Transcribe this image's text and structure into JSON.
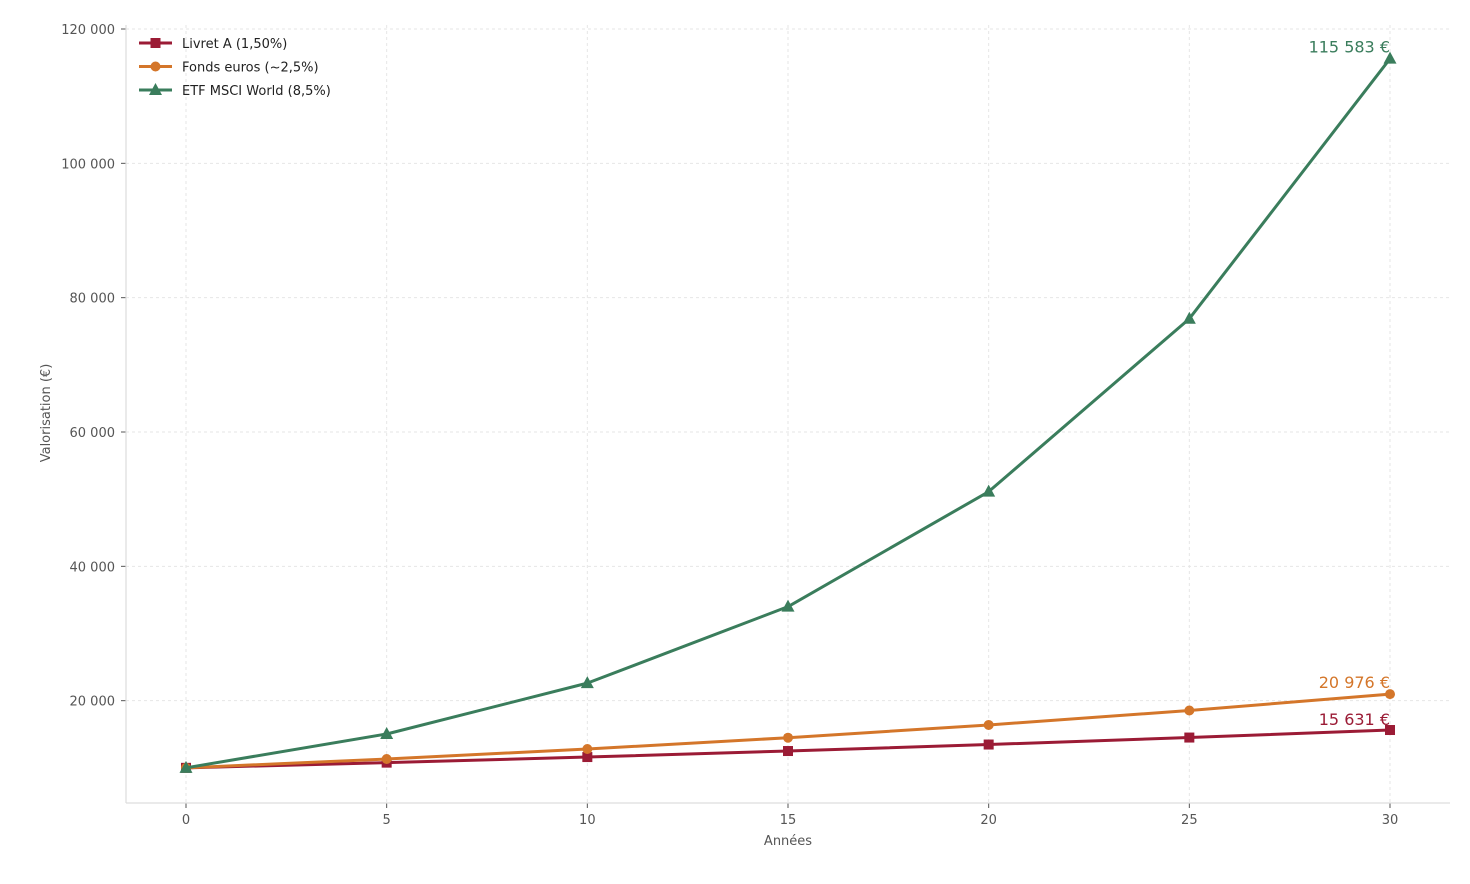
{
  "chart_data": {
    "type": "line",
    "title": "",
    "xlabel": "Années",
    "ylabel": "Valorisation (€)",
    "x": [
      0,
      5,
      10,
      15,
      20,
      25,
      30
    ],
    "xlim": [
      -1.5,
      31.5
    ],
    "ylim": [
      5000,
      120000
    ],
    "x_ticks": [
      0,
      5,
      10,
      15,
      20,
      25,
      30
    ],
    "y_ticks": [
      20000,
      40000,
      60000,
      80000,
      100000,
      120000
    ],
    "y_tick_labels": [
      "20 000",
      "40 000",
      "60 000",
      "80 000",
      "100 000",
      "120 000"
    ],
    "grid": true,
    "legend_position": "upper left",
    "series": [
      {
        "name": "Livret A (1,50%)",
        "color": "#9b1b35",
        "marker": "square",
        "values": [
          10000,
          10773,
          11605,
          12502,
          13469,
          14509,
          15631
        ],
        "end_label": "15 631 €"
      },
      {
        "name": "Fonds euros (~2,5%)",
        "color": "#d4762a",
        "marker": "circle",
        "values": [
          10000,
          11314,
          12801,
          14483,
          16386,
          18539,
          20976
        ],
        "end_label": "20 976 €"
      },
      {
        "name": "ETF MSCI World (8,5%)",
        "color": "#3a7d5c",
        "marker": "triangle",
        "values": [
          10000,
          15037,
          22610,
          33997,
          51120,
          76868,
          115583
        ],
        "end_label": "115 583 €"
      }
    ]
  }
}
